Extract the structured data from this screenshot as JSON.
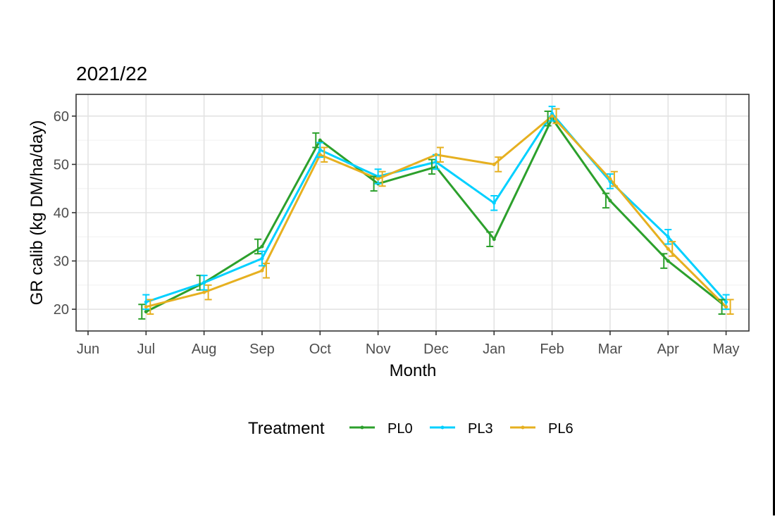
{
  "chart_data": {
    "type": "line",
    "title": "2021/22",
    "xlabel": "Month",
    "ylabel": "GR calib (kg DM/ha/day)",
    "categories": [
      "Jun",
      "Jul",
      "Aug",
      "Sep",
      "Oct",
      "Nov",
      "Dec",
      "Jan",
      "Feb",
      "Mar",
      "Apr",
      "May"
    ],
    "ylim": [
      15.5,
      64.5
    ],
    "yticks": [
      20,
      30,
      40,
      50,
      60
    ],
    "grid": true,
    "legend": {
      "title": "Treatment",
      "position": "bottom"
    },
    "error_bars": true,
    "series": [
      {
        "name": "PL0",
        "color": "#2ca02c",
        "values": [
          null,
          19.5,
          25.5,
          33.0,
          55.0,
          46.0,
          49.5,
          34.5,
          59.5,
          42.5,
          30.0,
          20.5
        ],
        "err": [
          null,
          1.5,
          1.5,
          1.5,
          1.5,
          1.5,
          1.5,
          1.5,
          1.5,
          1.5,
          1.5,
          1.5
        ]
      },
      {
        "name": "PL3",
        "color": "#00d0ff",
        "values": [
          null,
          21.5,
          25.5,
          30.5,
          53.0,
          47.5,
          50.5,
          42.0,
          60.5,
          46.5,
          35.0,
          21.5
        ],
        "err": [
          null,
          1.5,
          1.5,
          1.5,
          1.5,
          1.5,
          1.5,
          1.5,
          1.5,
          1.5,
          1.5,
          1.5
        ]
      },
      {
        "name": "PL6",
        "color": "#e6b020",
        "values": [
          null,
          20.5,
          23.5,
          28.0,
          52.0,
          47.0,
          52.0,
          50.0,
          60.0,
          47.0,
          32.5,
          20.5
        ],
        "err": [
          null,
          1.5,
          1.5,
          1.5,
          1.5,
          1.5,
          1.5,
          1.5,
          1.5,
          1.5,
          1.5,
          1.5
        ]
      }
    ]
  }
}
